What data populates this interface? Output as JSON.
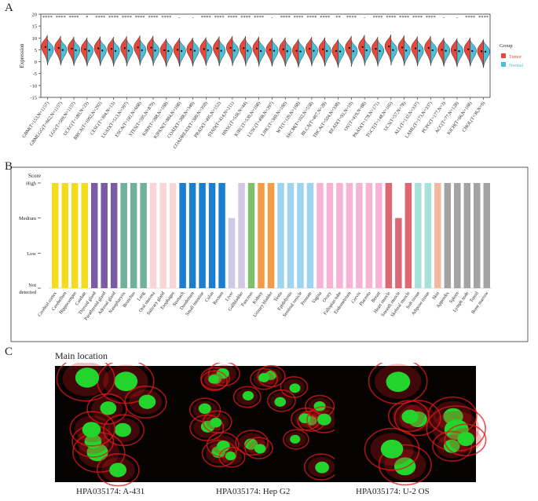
{
  "panels": {
    "a": "A",
    "b": "B",
    "c": "C"
  },
  "chart_data": [
    {
      "type": "violin",
      "ylabel": "Expression",
      "ylim": [
        -15,
        20
      ],
      "yticks": [
        -15,
        -10,
        -5,
        0,
        5,
        10,
        15,
        20
      ],
      "legend": {
        "title": "Group",
        "placement": "right",
        "entries": [
          {
            "name": "Tumor",
            "color": "#e8483b"
          },
          {
            "name": "Normal",
            "color": "#4bbfd8"
          }
        ]
      },
      "categories": [
        "GBM(T=153,N=1157)",
        "GBMLGG(T=662,N=1157)",
        "LGG(T=509,N=1157)",
        "UCEC(T=180,N=23)",
        "BRCA(T=1092,N=292)",
        "CESC(T=304,N=13)",
        "LUAD(T=513,N=397)",
        "ESCA(T=181,N=668)",
        "STES(T=595,N=879)",
        "KIRP(T=288,N=168)",
        "KIPAN(T=884,N=168)",
        "COAD(T=288,N=349)",
        "COADREAD(T=380,N=359)",
        "PRAD(T=495,N=152)",
        "STAD(T=414,N=211)",
        "HNSC(T=518,N=44)",
        "KIRC(T=530,N=168)",
        "LUSC(T=498,N=397)",
        "LIHC(T=369,N=160)",
        "WT(T=120,N=168)",
        "SKCM(T=102,N=558)",
        "BLCA(T=407,N=28)",
        "THCA(T=504,N=338)",
        "READ(T=92,N=10)",
        "OV(T=419,N=88)",
        "PAAD(T=178,N=171)",
        "TGCT(T=148,N=165)",
        "UCS(T=57,N=78)",
        "ALL(T=132,N=337)",
        "LAML(T=173,N=337)",
        "PCPG(T=177,N=3)",
        "ACC(T=77,N=128)",
        "KICH(T=66,N=168)",
        "CHOL(T=36,N=9)"
      ],
      "significance": [
        "****",
        "****",
        "****",
        "*",
        "****",
        "****",
        "****",
        "****",
        "****",
        "****",
        "-",
        "-",
        "****",
        "****",
        "****",
        "****",
        "****",
        "-",
        "****",
        "****",
        "****",
        "****",
        "**",
        "****",
        "-",
        "****",
        "****",
        "****",
        "****",
        "****",
        "-",
        "-",
        "****",
        "****"
      ],
      "tumor_median": [
        6.2,
        5.8,
        5.5,
        5.2,
        5.6,
        5.4,
        5.7,
        6.0,
        5.9,
        4.8,
        5.0,
        5.1,
        5.3,
        5.6,
        5.8,
        5.7,
        5.5,
        5.0,
        5.2,
        4.6,
        5.4,
        5.2,
        4.5,
        5.8,
        6.2,
        5.4,
        6.4,
        6.0,
        5.6,
        5.8,
        5.0,
        4.8,
        5.2,
        4.4
      ],
      "normal_median": [
        5.0,
        4.9,
        4.8,
        4.6,
        4.7,
        4.5,
        4.6,
        4.8,
        4.7,
        4.5,
        4.5,
        4.6,
        4.8,
        4.6,
        4.7,
        4.6,
        4.5,
        4.6,
        4.4,
        4.3,
        4.6,
        4.5,
        4.3,
        4.4,
        4.8,
        4.5,
        4.9,
        4.7,
        4.6,
        4.8,
        4.6,
        4.4,
        4.5,
        4.2
      ]
    },
    {
      "type": "bar",
      "ylabel": "Score",
      "yticks": [
        "Not detected",
        "Low",
        "Medium",
        "High"
      ],
      "categories": [
        "Cerebral cortex",
        "Cerebellum",
        "Hippocampus",
        "Caudate",
        "Thyroid gland",
        "Parathyroid gland",
        "Adrenal gland",
        "Nasopharynx",
        "Bronchus",
        "Lung",
        "Oral mucosa",
        "Salivary gland",
        "Esophagus",
        "Stomach",
        "Duodenum",
        "Small intestine",
        "Colon",
        "Rectum",
        "Liver",
        "Gallbladder",
        "Pancreas",
        "Kidney",
        "Urinary bladder",
        "Testis",
        "Epididymis",
        "Seminal vesicle",
        "Prostate",
        "Vagina",
        "Ovary",
        "Fallopian tube",
        "Endometrium",
        "Cervix",
        "Placenta",
        "Breast",
        "Heart muscle",
        "Smooth muscle",
        "Skeletal muscle",
        "Soft tissue",
        "Adipose tissue",
        "Skin",
        "Appendix",
        "Spleen",
        "Lymph node",
        "Tonsil",
        "Bone marrow"
      ],
      "values": [
        3,
        3,
        3,
        3,
        3,
        3,
        3,
        3,
        3,
        3,
        3,
        3,
        3,
        3,
        3,
        3,
        3,
        3,
        2,
        3,
        3,
        3,
        3,
        3,
        3,
        3,
        3,
        3,
        3,
        3,
        3,
        3,
        3,
        3,
        3,
        2,
        3,
        3,
        3,
        3,
        3,
        3,
        3,
        3,
        3
      ],
      "colors": [
        "#f2dc1d",
        "#f2dc1d",
        "#f2dc1d",
        "#f2dc1d",
        "#7b5ba5",
        "#7b5ba5",
        "#7b5ba5",
        "#6fb19a",
        "#6fb19a",
        "#6fb19a",
        "#f9d6d6",
        "#f9d6d6",
        "#f9d6d6",
        "#1a7fcf",
        "#1a7fcf",
        "#1a7fcf",
        "#1a7fcf",
        "#1a7fcf",
        "#cfc9e6",
        "#cfc9e6",
        "#7ec06a",
        "#f59a45",
        "#f59a45",
        "#9dd4ef",
        "#9dd4ef",
        "#9dd4ef",
        "#9dd4ef",
        "#f6b3d5",
        "#f6b3d5",
        "#f6b3d5",
        "#f6b3d5",
        "#f6b3d5",
        "#f6b3d5",
        "#f6b3d5",
        "#df6673",
        "#df6673",
        "#df6673",
        "#a8e0dc",
        "#a8e0dc",
        "#f3b9a0",
        "#a3a3a3",
        "#a3a3a3",
        "#a3a3a3",
        "#a3a3a3",
        "#a3a3a3"
      ]
    }
  ],
  "panel_c": {
    "title": "Main location",
    "captions": [
      "HPA035174: A-431",
      "HPA035174: Hep G2",
      "HPA035174: U-2 OS"
    ],
    "colors": {
      "stain": "#22d42c",
      "actin": "#e0191b",
      "background": "#050202"
    }
  }
}
